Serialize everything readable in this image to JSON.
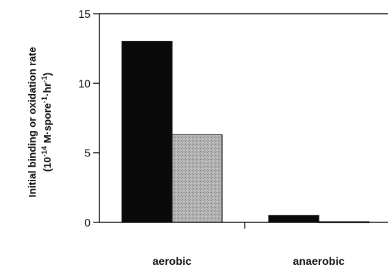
{
  "chart_data": {
    "type": "bar",
    "categories": [
      "aerobic",
      "anaerobic"
    ],
    "series": [
      {
        "values": [
          13.0,
          0.5
        ],
        "color": "#0a0a0a"
      },
      {
        "values": [
          6.3,
          0.05
        ],
        "color": "#a9a9a9"
      }
    ],
    "ylabel_line1": "Initial binding or oxidation rate",
    "ylabel_line2_prefix": "(10",
    "ylabel_line2_exp1": "-14",
    "ylabel_line2_mid": " M·spore",
    "ylabel_line2_exp2": "-1",
    "ylabel_line2_mid2": "·hr",
    "ylabel_line2_exp3": "-1",
    "ylabel_line2_suffix": ")",
    "ylim": [
      0,
      15
    ],
    "yticks": [
      0,
      5,
      10,
      15
    ],
    "grid": false,
    "legend": "none"
  }
}
